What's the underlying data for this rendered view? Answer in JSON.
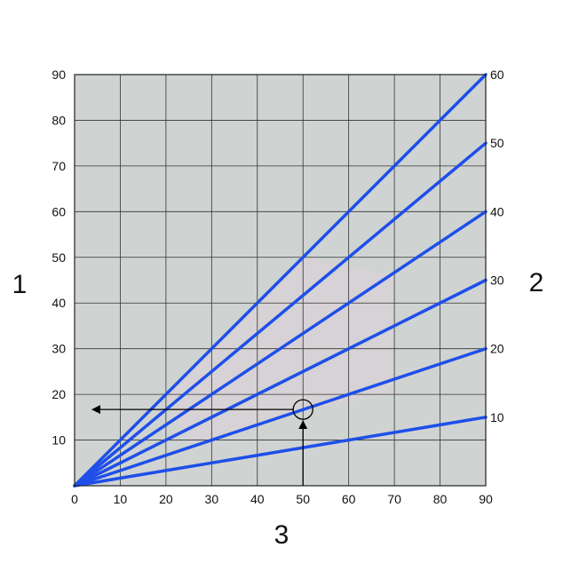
{
  "chart_data": {
    "type": "line",
    "grid": true,
    "x_axis": {
      "label": "3",
      "range": [
        0,
        90
      ],
      "ticks": [
        0,
        10,
        20,
        30,
        40,
        50,
        60,
        70,
        80,
        90
      ]
    },
    "y_left_axis": {
      "label": "1",
      "range": [
        0,
        90
      ],
      "ticks": [
        10,
        20,
        30,
        40,
        50,
        60,
        70,
        80,
        90
      ]
    },
    "y_right_axis": {
      "label": "2",
      "ticks": [
        10,
        20,
        30,
        40,
        50,
        60
      ]
    },
    "series": [
      {
        "values": [
          [
            0,
            0
          ],
          [
            90,
            90
          ]
        ],
        "end_label": "60"
      },
      {
        "values": [
          [
            0,
            0
          ],
          [
            90,
            75
          ]
        ],
        "end_label": "50"
      },
      {
        "values": [
          [
            0,
            0
          ],
          [
            90,
            60
          ]
        ],
        "end_label": "40"
      },
      {
        "values": [
          [
            0,
            0
          ],
          [
            90,
            45
          ]
        ],
        "end_label": "30"
      },
      {
        "values": [
          [
            0,
            0
          ],
          [
            90,
            30
          ]
        ],
        "end_label": "20"
      },
      {
        "values": [
          [
            0,
            0
          ],
          [
            90,
            15
          ]
        ],
        "end_label": "10"
      }
    ],
    "annotation": {
      "point": [
        50,
        16.7
      ],
      "vertical_arrow_from_x": 50,
      "horizontal_arrow_to_y": 16.7
    },
    "colors": {
      "plot_background": "#cfd4d3",
      "series": "#1f4fe8",
      "grid": "#333333",
      "highlight": "#d9d2d6"
    }
  }
}
